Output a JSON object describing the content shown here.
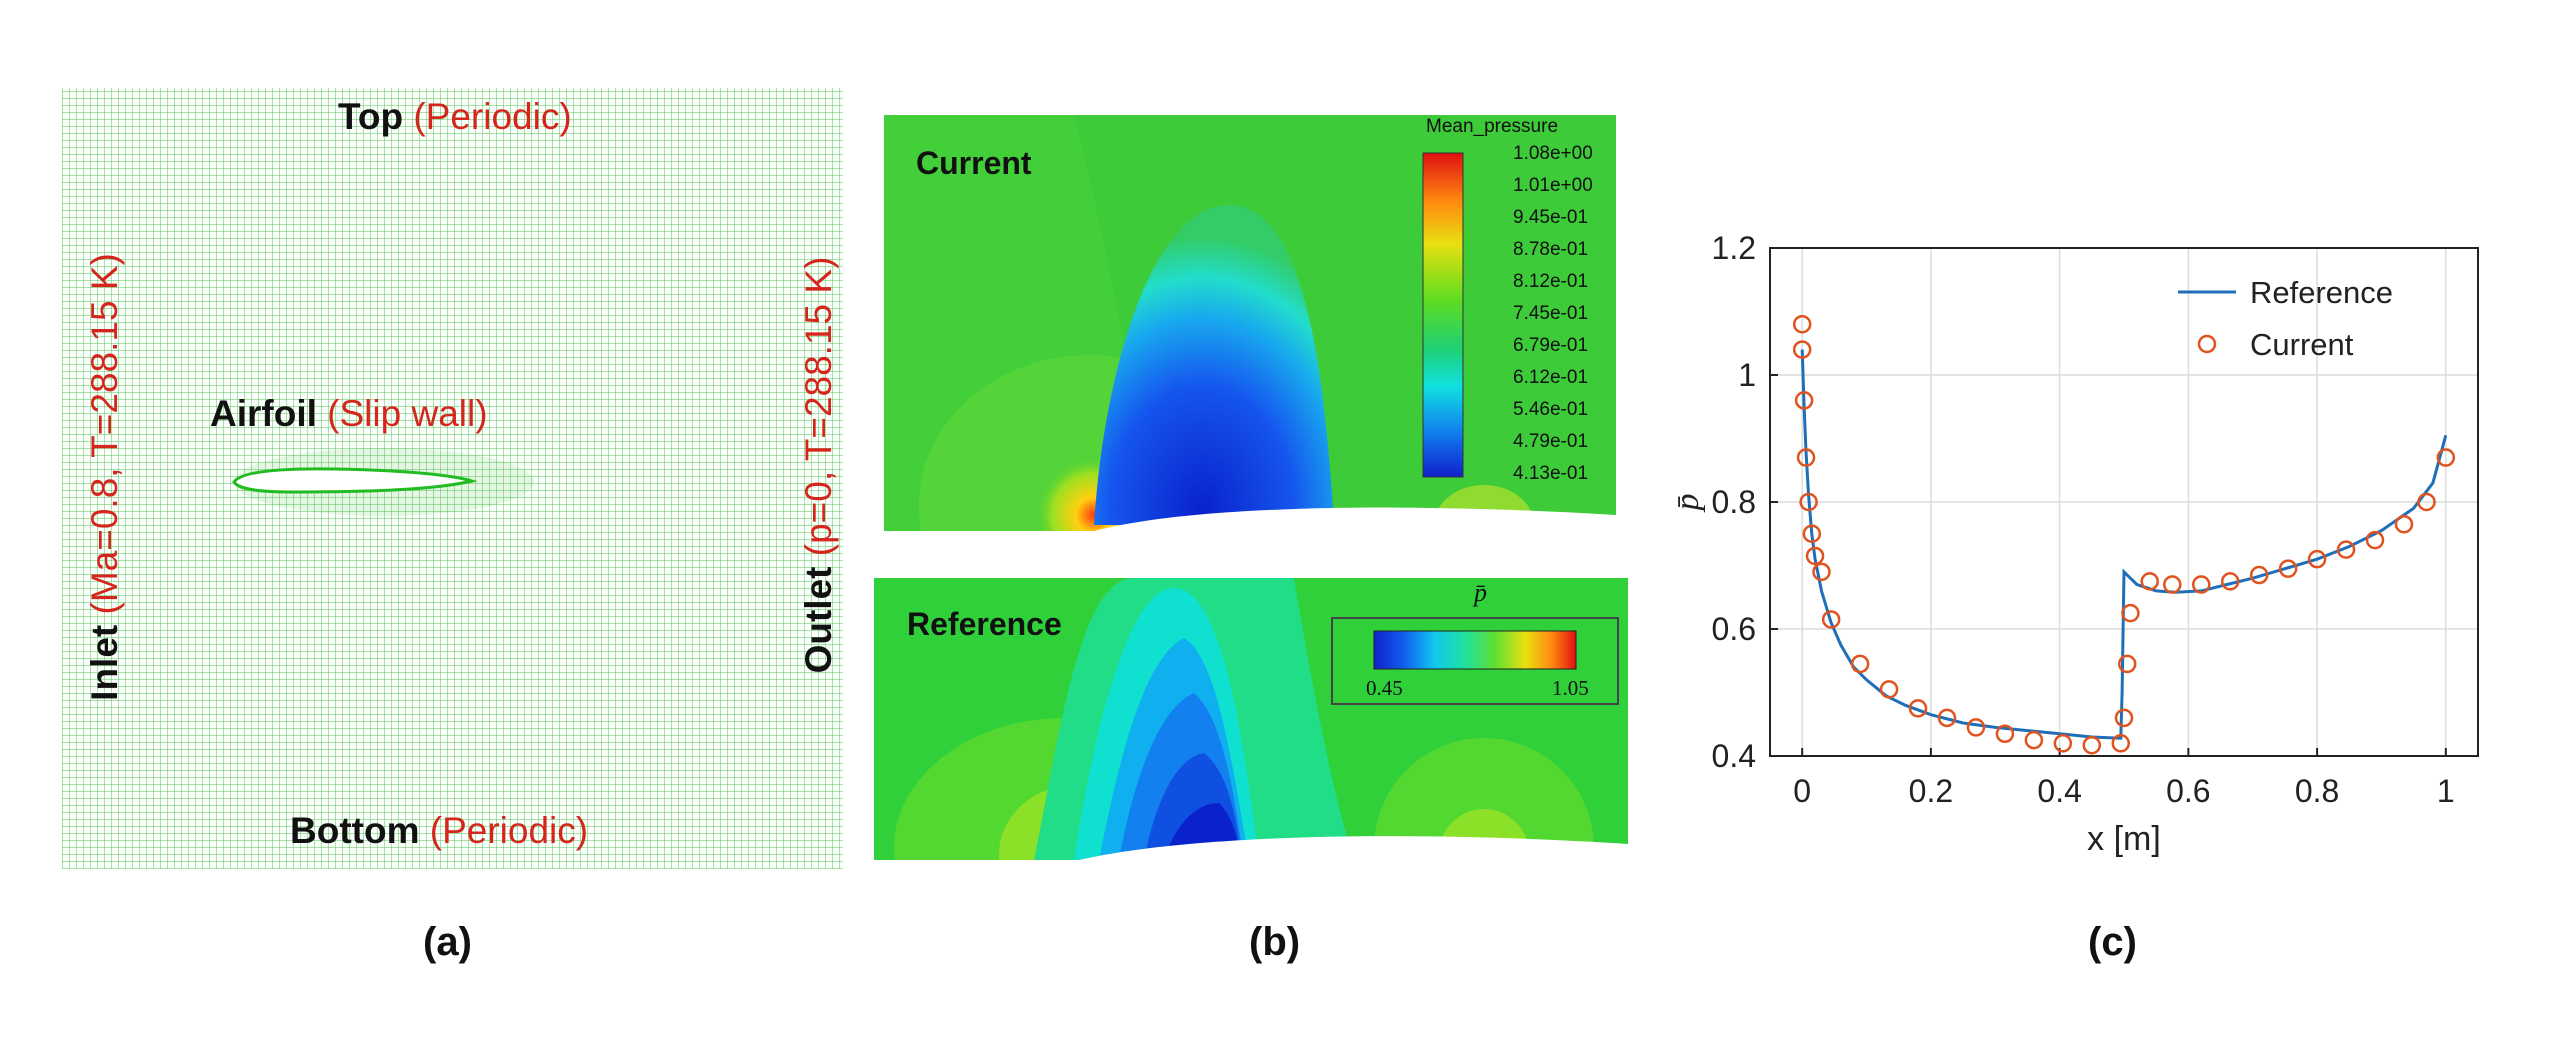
{
  "panel_a": {
    "top_label": "Top",
    "top_bc": "(Periodic)",
    "bottom_label": "Bottom",
    "bottom_bc": "(Periodic)",
    "inlet_label": "Inlet",
    "inlet_bc": "(Ma=0.8, T=288.15 K)",
    "outlet_label": "Outlet",
    "outlet_bc": "(p=0, T=288.15 K)",
    "airfoil_label": "Airfoil",
    "airfoil_bc": "(Slip wall)",
    "caption": "(a)"
  },
  "panel_b": {
    "current_label": "Current",
    "reference_label": "Reference",
    "colorbar_title": "Mean_pressure",
    "colorbar_ticks": [
      "1.08e+00",
      "1.01e+00",
      "9.45e-01",
      "8.78e-01",
      "8.12e-01",
      "7.45e-01",
      "6.79e-01",
      "6.12e-01",
      "5.46e-01",
      "4.79e-01",
      "4.13e-01"
    ],
    "ref_colorbar_symbol": "p̄",
    "ref_colorbar_min": "0.45",
    "ref_colorbar_max": "1.05",
    "caption": "(b)"
  },
  "panel_c": {
    "caption": "(c)",
    "chart_data": {
      "type": "line",
      "xlabel": "x [m]",
      "ylabel": "p̄",
      "xlim": [
        -0.05,
        1.05
      ],
      "ylim": [
        0.4,
        1.2
      ],
      "xticks": [
        0,
        0.2,
        0.4,
        0.6,
        0.8,
        1
      ],
      "xtick_labels": [
        "0",
        "0.2",
        "0.4",
        "0.6",
        "0.8",
        "1"
      ],
      "yticks": [
        0.4,
        0.6,
        0.8,
        1,
        1.2
      ],
      "ytick_labels": [
        "0.4",
        "0.6",
        "0.8",
        "1",
        "1.2"
      ],
      "grid": true,
      "legend_position": "top-right",
      "series": [
        {
          "name": "Reference",
          "style": "line",
          "color": "#1f6fb8",
          "x": [
            0,
            0.003,
            0.006,
            0.01,
            0.015,
            0.02,
            0.03,
            0.045,
            0.06,
            0.08,
            0.1,
            0.13,
            0.16,
            0.2,
            0.25,
            0.3,
            0.35,
            0.4,
            0.45,
            0.495,
            0.497,
            0.5,
            0.51,
            0.52,
            0.535,
            0.55,
            0.58,
            0.62,
            0.66,
            0.7,
            0.75,
            0.8,
            0.85,
            0.9,
            0.95,
            0.98,
            1.0
          ],
          "y": [
            1.04,
            0.95,
            0.88,
            0.81,
            0.75,
            0.71,
            0.66,
            0.61,
            0.575,
            0.54,
            0.52,
            0.495,
            0.48,
            0.465,
            0.452,
            0.445,
            0.44,
            0.435,
            0.43,
            0.428,
            0.5,
            0.69,
            0.68,
            0.67,
            0.665,
            0.66,
            0.658,
            0.66,
            0.67,
            0.68,
            0.695,
            0.71,
            0.73,
            0.755,
            0.79,
            0.83,
            0.905
          ]
        },
        {
          "name": "Current",
          "style": "markers",
          "color": "#e0531f",
          "x": [
            0.0,
            0.0,
            0.003,
            0.006,
            0.01,
            0.015,
            0.02,
            0.03,
            0.045,
            0.09,
            0.135,
            0.18,
            0.225,
            0.27,
            0.315,
            0.36,
            0.405,
            0.45,
            0.495,
            0.5,
            0.505,
            0.51,
            0.54,
            0.575,
            0.62,
            0.665,
            0.71,
            0.755,
            0.8,
            0.845,
            0.89,
            0.935,
            0.97,
            1.0
          ],
          "y": [
            1.08,
            1.04,
            0.96,
            0.87,
            0.8,
            0.75,
            0.715,
            0.69,
            0.615,
            0.545,
            0.505,
            0.475,
            0.46,
            0.445,
            0.435,
            0.425,
            0.42,
            0.417,
            0.42,
            0.46,
            0.545,
            0.625,
            0.675,
            0.67,
            0.67,
            0.675,
            0.685,
            0.695,
            0.71,
            0.725,
            0.74,
            0.765,
            0.8,
            0.87
          ]
        }
      ]
    }
  }
}
